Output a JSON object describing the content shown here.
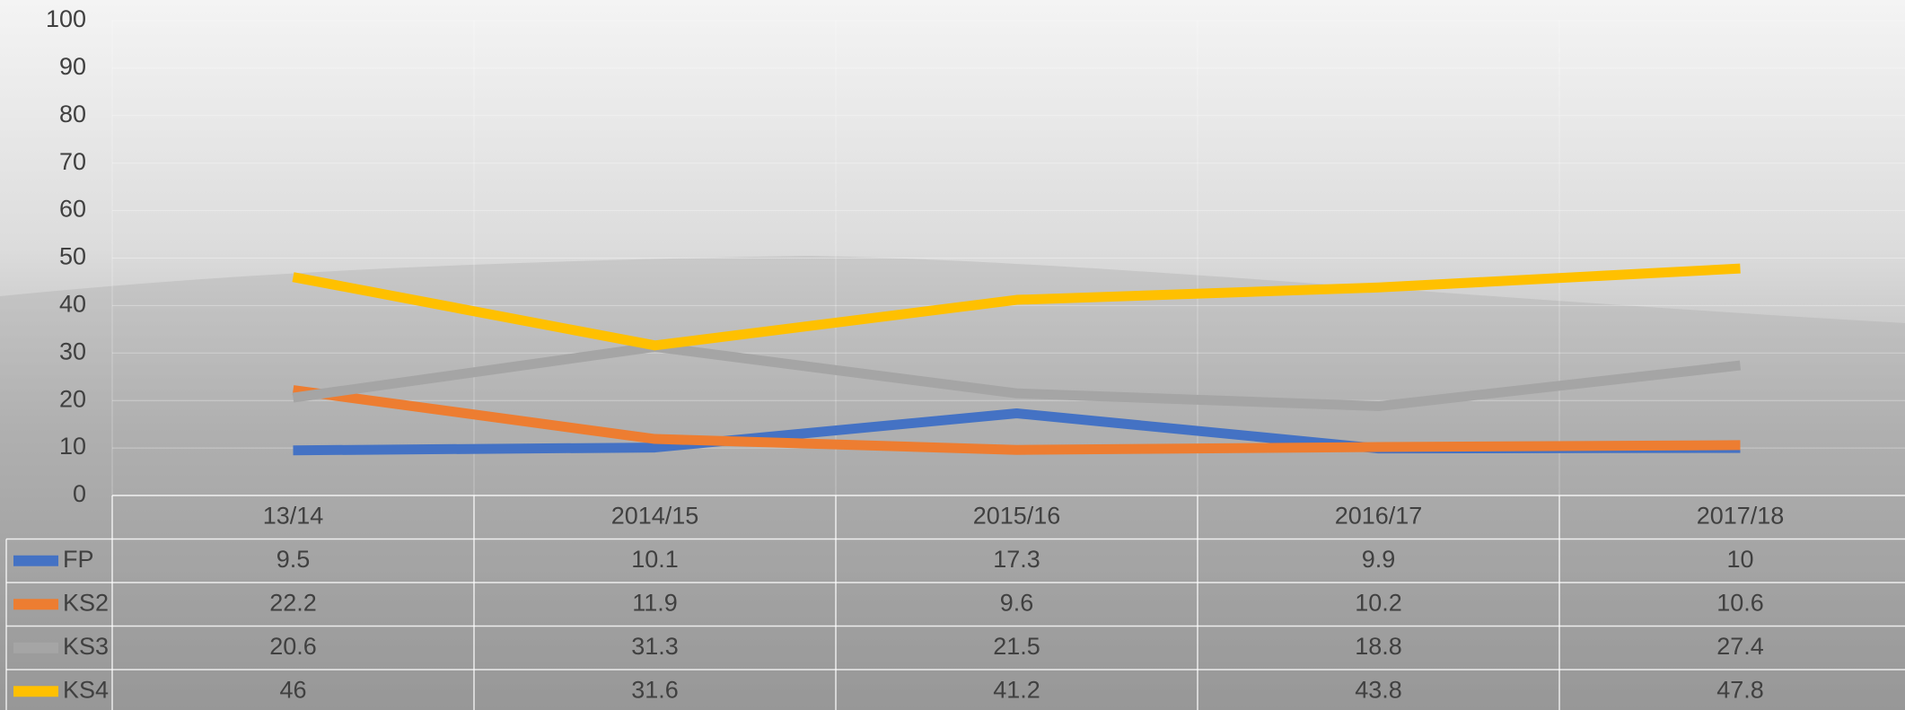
{
  "chart_data": {
    "type": "line",
    "categories": [
      "13/14",
      "2014/15",
      "2015/16",
      "2016/17",
      "2017/18"
    ],
    "series": [
      {
        "name": "FP",
        "color": "#4472c4",
        "values": [
          9.5,
          10.1,
          17.3,
          9.9,
          10
        ]
      },
      {
        "name": "KS2",
        "color": "#ed7d31",
        "values": [
          22.2,
          11.9,
          9.6,
          10.2,
          10.6
        ]
      },
      {
        "name": "KS3",
        "color": "#a5a5a5",
        "values": [
          20.6,
          31.3,
          21.5,
          18.8,
          27.4
        ]
      },
      {
        "name": "KS4",
        "color": "#ffc000",
        "values": [
          46,
          31.6,
          41.2,
          43.8,
          47.8
        ]
      }
    ],
    "ylim": [
      0,
      100
    ],
    "yticks": [
      0,
      10,
      20,
      30,
      40,
      50,
      60,
      70,
      80,
      90,
      100
    ],
    "grid": true,
    "data_table": true
  }
}
